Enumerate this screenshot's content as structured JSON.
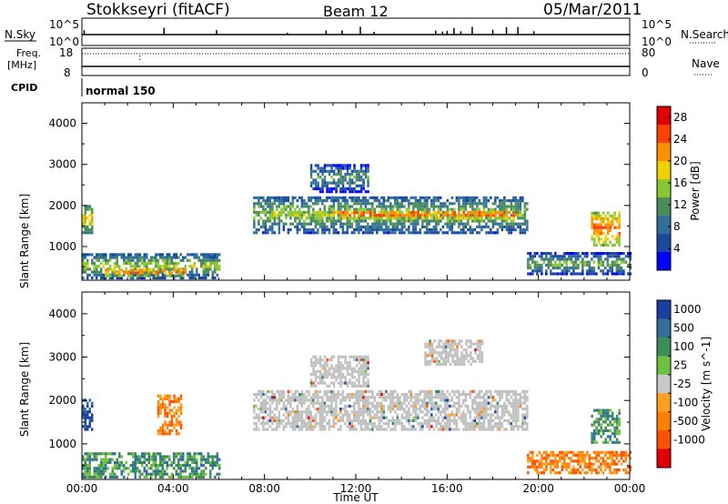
{
  "header": {
    "station": "Stokkseyri (fitACF)",
    "beam": "Beam 12",
    "date": "05/Mar/2011"
  },
  "top_panels": {
    "nsky_label": "N.Sky",
    "nsky_ticks": [
      "10^5",
      "10^0"
    ],
    "nsearch_label": "N.Search",
    "nsearch_ticks": [
      "10^5",
      "10^0"
    ],
    "freq_label": "Freq.",
    "freq_unit": "[MHz]",
    "freq_ticks": [
      "18",
      "8"
    ],
    "nave_label": "Nave",
    "nave_ticks": [
      "80",
      "0"
    ],
    "cpid_label": "CPID",
    "cpid_value": "normal 150"
  },
  "colors": {
    "power_scale": [
      "#0000ff",
      "#1a4aa0",
      "#2f6f9a",
      "#4a8c5a",
      "#8ac832",
      "#f0d000",
      "#ff9000",
      "#ff4000",
      "#e00000"
    ],
    "velocity_scale": [
      "#1a3fa0",
      "#2f6f9a",
      "#3c8c5a",
      "#70c040",
      "#c8c8c8",
      "#ffa020",
      "#ff8000",
      "#ff5000",
      "#e00000"
    ],
    "ground_scatter": "#c0c0c0"
  },
  "chart_data": [
    {
      "type": "heatmap",
      "name": "power",
      "xlabel": "",
      "ylabel": "Slant Range [km]",
      "x_ticks": [
        "00:00",
        "04:00",
        "08:00",
        "12:00",
        "16:00",
        "20:00",
        "00:00"
      ],
      "x_range_hours": [
        0,
        24
      ],
      "ylim": [
        180,
        4500
      ],
      "y_ticks": [
        1000,
        2000,
        3000,
        4000
      ],
      "colorbar": {
        "label": "Power [dB]",
        "ticks": [
          "4",
          "8",
          "12",
          "16",
          "20",
          "24",
          "28"
        ],
        "range": [
          0,
          30
        ]
      },
      "echo_regions": [
        {
          "t_start": 0.0,
          "t_end": 0.4,
          "r_start": 1300,
          "r_end": 2000,
          "level": 20
        },
        {
          "t_start": 0.0,
          "t_end": 6.0,
          "r_start": 200,
          "r_end": 800,
          "level": 16
        },
        {
          "t_start": 1.0,
          "t_end": 4.5,
          "r_start": 250,
          "r_end": 450,
          "level": 26
        },
        {
          "t_start": 7.5,
          "t_end": 19.5,
          "r_start": 1300,
          "r_end": 2200,
          "level": 16
        },
        {
          "t_start": 11.0,
          "t_end": 19.0,
          "r_start": 1650,
          "r_end": 1850,
          "level": 28
        },
        {
          "t_start": 10.0,
          "t_end": 12.5,
          "r_start": 2300,
          "r_end": 3000,
          "level": 12
        },
        {
          "t_start": 19.5,
          "t_end": 24.0,
          "r_start": 300,
          "r_end": 800,
          "level": 14
        },
        {
          "t_start": 22.3,
          "t_end": 23.5,
          "r_start": 1000,
          "r_end": 1800,
          "level": 26
        }
      ]
    },
    {
      "type": "heatmap",
      "name": "velocity",
      "xlabel": "Time UT",
      "ylabel": "Slant Range [km]",
      "x_ticks": [
        "00:00",
        "04:00",
        "08:00",
        "12:00",
        "16:00",
        "20:00",
        "00:00"
      ],
      "x_range_hours": [
        0,
        24
      ],
      "ylim": [
        180,
        4500
      ],
      "y_ticks": [
        1000,
        2000,
        3000,
        4000
      ],
      "colorbar": {
        "label": "Velocity [m s^-1]",
        "ticks": [
          "1000",
          "500",
          "100",
          "25",
          "-25",
          "-100",
          "-500",
          "-1000"
        ]
      },
      "echo_regions": [
        {
          "t_start": 0.0,
          "t_end": 0.4,
          "r_start": 1300,
          "r_end": 2000,
          "velocity": 500
        },
        {
          "t_start": 0.0,
          "t_end": 6.0,
          "r_start": 200,
          "r_end": 800,
          "velocity": 100
        },
        {
          "t_start": 3.3,
          "t_end": 4.3,
          "r_start": 1200,
          "r_end": 2100,
          "velocity": -100
        },
        {
          "t_start": 7.5,
          "t_end": 19.5,
          "r_start": 1300,
          "r_end": 2200,
          "velocity": 0,
          "ground_scatter": true
        },
        {
          "t_start": 10.0,
          "t_end": 12.5,
          "r_start": 2300,
          "r_end": 3000,
          "velocity": 0,
          "ground_scatter": true
        },
        {
          "t_start": 15.0,
          "t_end": 17.5,
          "r_start": 2800,
          "r_end": 3400,
          "velocity": 0,
          "ground_scatter": true
        },
        {
          "t_start": 19.5,
          "t_end": 24.0,
          "r_start": 300,
          "r_end": 800,
          "velocity": -100
        },
        {
          "t_start": 22.3,
          "t_end": 23.5,
          "r_start": 1000,
          "r_end": 1800,
          "velocity": 100
        }
      ]
    }
  ]
}
